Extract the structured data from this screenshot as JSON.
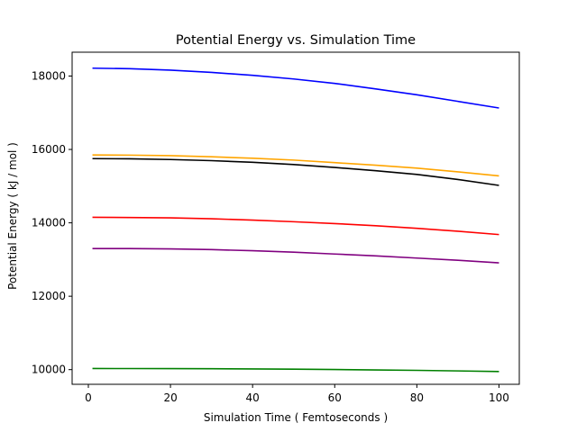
{
  "chart_data": {
    "type": "line",
    "title": "Potential Energy vs. Simulation Time",
    "xlabel": "Simulation Time ( Femtoseconds )",
    "ylabel": "Potential Energy ( kJ / mol )",
    "xlim": [
      -3.95,
      104.95
    ],
    "ylim": [
      9600,
      18650
    ],
    "xticks": [
      0,
      20,
      40,
      60,
      80,
      100
    ],
    "yticks": [
      10000,
      12000,
      14000,
      16000,
      18000
    ],
    "grid": false,
    "x": [
      1,
      10,
      20,
      30,
      40,
      50,
      60,
      70,
      80,
      90,
      100
    ],
    "series": [
      {
        "color": "#0000ff",
        "values": [
          18215,
          18200,
          18160,
          18100,
          18020,
          17920,
          17800,
          17650,
          17490,
          17310,
          17130
        ]
      },
      {
        "color": "#ffa500",
        "values": [
          15850,
          15845,
          15830,
          15800,
          15760,
          15710,
          15640,
          15570,
          15490,
          15390,
          15280
        ]
      },
      {
        "color": "#000000",
        "values": [
          15750,
          15745,
          15725,
          15695,
          15650,
          15590,
          15510,
          15420,
          15320,
          15180,
          15020
        ]
      },
      {
        "color": "#ff0000",
        "values": [
          14150,
          14145,
          14135,
          14110,
          14075,
          14030,
          13980,
          13920,
          13850,
          13770,
          13680
        ]
      },
      {
        "color": "#800080",
        "values": [
          13300,
          13298,
          13290,
          13270,
          13240,
          13200,
          13150,
          13100,
          13040,
          12980,
          12910
        ]
      },
      {
        "color": "#008000",
        "values": [
          10030,
          10029,
          10027,
          10024,
          10019,
          10012,
          10003,
          9992,
          9980,
          9965,
          9948
        ]
      }
    ]
  }
}
